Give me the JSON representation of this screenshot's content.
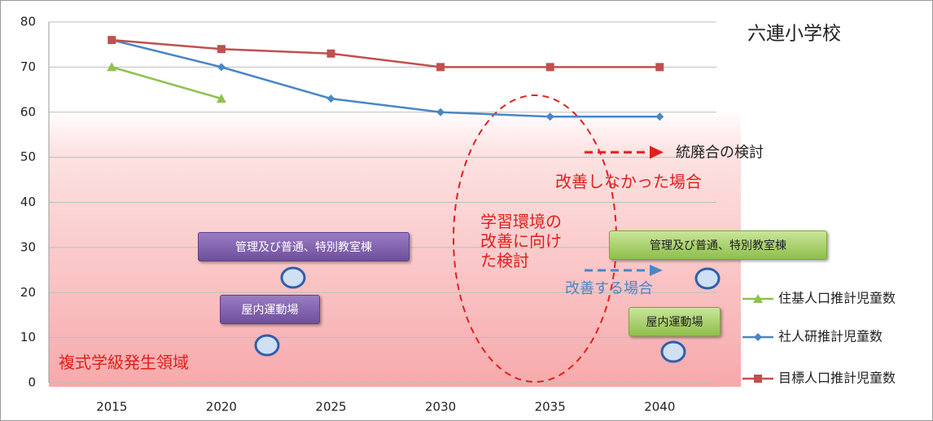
{
  "chart_data": {
    "type": "line",
    "title": "六連小学校",
    "categories": [
      "2015",
      "2020",
      "2025",
      "2030",
      "2035",
      "2040"
    ],
    "series": [
      {
        "name": "住基人口推計児童数",
        "color": "#8fc24f",
        "marker": "triangle",
        "values": [
          70,
          63,
          null,
          null,
          null,
          null
        ]
      },
      {
        "name": "社人研推計児童数",
        "color": "#4a86c5",
        "marker": "diamond",
        "values": [
          76,
          70,
          63,
          60,
          59,
          59
        ]
      },
      {
        "name": "目標人口推計児童数",
        "color": "#c0504d",
        "marker": "square",
        "values": [
          76,
          74,
          73,
          70,
          70,
          70
        ]
      }
    ],
    "ylim": [
      0,
      80
    ],
    "yticks": [
      0,
      10,
      20,
      30,
      40,
      50,
      60,
      70,
      80
    ],
    "grid": true,
    "annotations": [
      "統廃合の検討",
      "改善しなかった場合",
      "学習環境の改善に向けた検討",
      "改善する場合",
      "複式学級発生領域",
      "管理及び普通、特別教室棟",
      "屋内運動場",
      "管理及び普通、特別教室棟",
      "屋内運動場"
    ]
  }
}
